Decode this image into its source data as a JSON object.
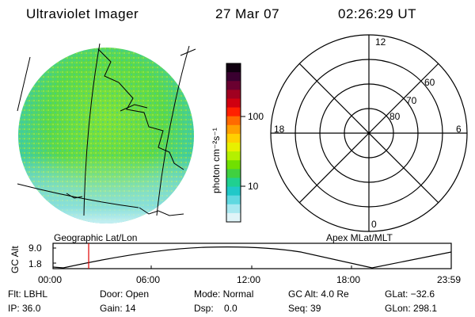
{
  "header": {
    "title": "Ultraviolet Imager",
    "date": "27 Mar 07",
    "time": "02:26:29 UT"
  },
  "colorbar": {
    "unit_label": "photon cm⁻²s⁻¹",
    "ticks": [
      "100",
      "10"
    ],
    "colors": [
      "#100010",
      "#3a0030",
      "#6a0030",
      "#a00020",
      "#d00010",
      "#ff2000",
      "#ff6a00",
      "#ffa000",
      "#ffd000",
      "#e8f000",
      "#b4f000",
      "#70e000",
      "#40d040",
      "#20d090",
      "#20c8c8",
      "#60d8e0",
      "#a8e8f0",
      "#e0f4f8"
    ]
  },
  "image_panel": {
    "label": "Geographic Lat/Lon"
  },
  "polar_panel": {
    "label": "Apex MLat/MLT",
    "mlt_labels": {
      "top": "12",
      "left": "18",
      "right": "6",
      "bottom": "0"
    },
    "lat_labels": [
      "60",
      "70",
      "80"
    ]
  },
  "altitude_plot": {
    "ylabel": "GC Alt",
    "yticks": [
      "9.0",
      "1.8"
    ],
    "xticks": [
      "00:00",
      "06:00",
      "12:00",
      "18:00",
      "23:59"
    ],
    "marker_color": "#e00000"
  },
  "info": {
    "row1": [
      "Flt: LBHL",
      "Door: Open",
      "Mode: Normal",
      "GC Alt: 4.0 Re",
      "GLat: −32.6"
    ],
    "row2": [
      "IP: 36.0",
      "Gain: 14",
      "Dsp:    0.0",
      "Seq: 39",
      "GLon: 298.1"
    ]
  }
}
